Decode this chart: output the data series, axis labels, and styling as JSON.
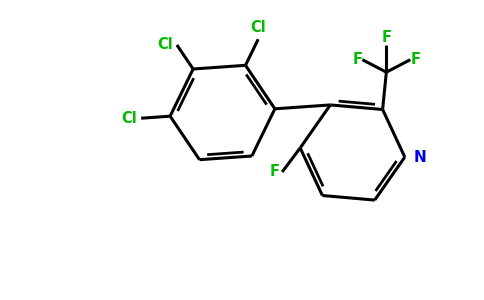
{
  "bg_color": "#ffffff",
  "bond_color": "#000000",
  "cl_color": "#00bb00",
  "f_color": "#00bb00",
  "n_color": "#0000ee",
  "lw": 2.2,
  "figsize": [
    4.84,
    3.0
  ],
  "dpi": 100,
  "xlim": [
    0,
    9.68
  ],
  "ylim": [
    0,
    6.0
  ]
}
